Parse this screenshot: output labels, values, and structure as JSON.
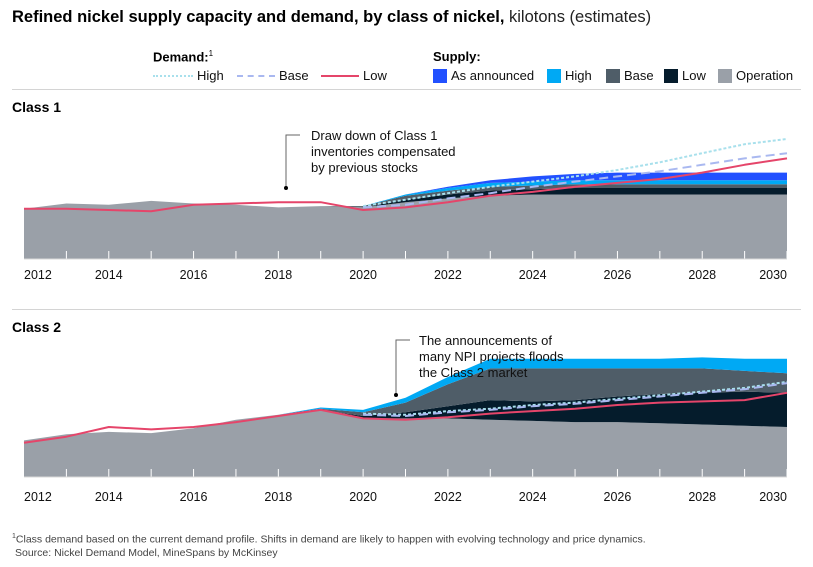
{
  "title": {
    "bold": "Refined nickel supply capacity and demand, by class of nickel,",
    "unit": "kilotons (estimates)"
  },
  "legend": {
    "demand_label": "Demand:",
    "demand_sup": "1",
    "supply_label": "Supply:",
    "demand_items": [
      {
        "label": "High",
        "color": "#a8e0ec",
        "style": "dotted"
      },
      {
        "label": "Base",
        "color": "#a9b8f0",
        "style": "dashed"
      },
      {
        "label": "Low",
        "color": "#e5456a",
        "style": "solid"
      }
    ],
    "supply_items": [
      {
        "label": "As announced",
        "color": "#2251ff"
      },
      {
        "label": "High",
        "color": "#00a9f4"
      },
      {
        "label": "Base",
        "color": "#4f5d68"
      },
      {
        "label": "Low",
        "color": "#051c2c"
      },
      {
        "label": "Operation",
        "color": "#9aa0a8"
      }
    ]
  },
  "annotations": {
    "class1": [
      "Draw down of Class 1",
      "inventories compensated",
      "by previous stocks"
    ],
    "class2": [
      "The announcements of",
      "many NPI projects floods",
      "the Class 2 market"
    ]
  },
  "footnote": {
    "sup": "1",
    "line1": "Class demand based on the current demand profile. Shifts in demand are likely to happen with evolving technology and price dynamics.",
    "line2": "Source: Nickel Demand Model, MineSpans by McKinsey"
  },
  "chart_data": [
    {
      "type": "area",
      "title": "Class 1",
      "xlabel": "",
      "ylabel": "kilotons (estimates, relative index; no y-axis shown)",
      "x": [
        2012,
        2013,
        2014,
        2015,
        2016,
        2017,
        2018,
        2019,
        2020,
        2021,
        2022,
        2023,
        2024,
        2025,
        2026,
        2027,
        2028,
        2029,
        2030
      ],
      "xticks": [
        2012,
        2014,
        2016,
        2018,
        2020,
        2022,
        2024,
        2026,
        2028,
        2030
      ],
      "ylim": [
        0,
        100
      ],
      "grid": false,
      "stacked_supply": [
        {
          "name": "Operation",
          "color": "#9aa0a8",
          "values": [
            39,
            43,
            42,
            45,
            43,
            42,
            40,
            41,
            40,
            44,
            47,
            49,
            50,
            50,
            50,
            50,
            50,
            50,
            50
          ]
        },
        {
          "name": "Low",
          "color": "#051c2c",
          "values": [
            0,
            0,
            0,
            0,
            0,
            0,
            0,
            0,
            0,
            2,
            3,
            4,
            4,
            5,
            5,
            5,
            5,
            5,
            5
          ]
        },
        {
          "name": "Base",
          "color": "#4f5d68",
          "values": [
            0,
            0,
            0,
            0,
            0,
            0,
            0,
            0,
            1,
            3,
            3,
            3,
            3,
            3,
            3,
            3,
            3,
            3,
            3
          ]
        },
        {
          "name": "High",
          "color": "#00a9f4",
          "values": [
            0,
            0,
            0,
            0,
            0,
            0,
            0,
            0,
            0,
            1,
            2,
            3,
            3,
            3,
            3,
            3,
            3,
            3,
            3
          ]
        },
        {
          "name": "As announced",
          "color": "#2251ff",
          "values": [
            0,
            0,
            0,
            0,
            0,
            0,
            0,
            0,
            0,
            0,
            1,
            2,
            4,
            5,
            6,
            6,
            6,
            6,
            6
          ]
        }
      ],
      "demand_lines": [
        {
          "name": "High",
          "color": "#a8e0ec",
          "style": "dotted",
          "values": [
            null,
            null,
            null,
            null,
            null,
            null,
            null,
            null,
            41,
            46,
            51,
            56,
            60,
            64,
            69,
            75,
            82,
            89,
            93
          ]
        },
        {
          "name": "Base",
          "color": "#a9b8f0",
          "style": "dashed",
          "values": [
            null,
            null,
            null,
            null,
            null,
            null,
            null,
            null,
            40,
            42,
            47,
            51,
            56,
            60,
            64,
            68,
            73,
            78,
            82
          ]
        },
        {
          "name": "Low",
          "color": "#e5456a",
          "style": "solid",
          "values": [
            39,
            39,
            38,
            37,
            42,
            43,
            44,
            44,
            38,
            40,
            44,
            49,
            52,
            56,
            59,
            62,
            67,
            73,
            78
          ]
        }
      ],
      "annotation": "Draw down of Class 1 inventories compensated by previous stocks",
      "annotation_x": 2018
    },
    {
      "type": "area",
      "title": "Class 2",
      "xlabel": "",
      "ylabel": "kilotons (estimates, relative index; no y-axis shown)",
      "x": [
        2012,
        2013,
        2014,
        2015,
        2016,
        2017,
        2018,
        2019,
        2020,
        2021,
        2022,
        2023,
        2024,
        2025,
        2026,
        2027,
        2028,
        2029,
        2030
      ],
      "xticks": [
        2012,
        2014,
        2016,
        2018,
        2020,
        2022,
        2024,
        2026,
        2028,
        2030
      ],
      "ylim": [
        0,
        100
      ],
      "grid": false,
      "stacked_supply": [
        {
          "name": "Operation",
          "color": "#9aa0a8",
          "values": [
            30,
            35,
            37,
            36,
            40,
            47,
            51,
            55,
            48,
            48,
            48,
            47,
            46,
            45,
            45,
            44,
            43,
            42,
            41
          ]
        },
        {
          "name": "Low",
          "color": "#051c2c",
          "values": [
            0,
            0,
            0,
            0,
            0,
            0,
            0,
            0,
            2,
            5,
            10,
            16,
            16,
            18,
            21,
            24,
            26,
            28,
            28
          ]
        },
        {
          "name": "Base",
          "color": "#4f5d68",
          "values": [
            0,
            0,
            0,
            0,
            0,
            0,
            0,
            1,
            3,
            8,
            18,
            26,
            27,
            26,
            23,
            21,
            20,
            17,
            16
          ]
        },
        {
          "name": "High",
          "color": "#00a9f4",
          "values": [
            0,
            0,
            0,
            0,
            0,
            0,
            0,
            1,
            2,
            4,
            6,
            8,
            8,
            8,
            8,
            8,
            9,
            10,
            12
          ]
        },
        {
          "name": "As announced",
          "color": "#2251ff",
          "values": [
            0,
            0,
            0,
            0,
            0,
            0,
            0,
            0,
            0,
            0,
            0,
            0,
            0,
            0,
            0,
            0,
            0,
            0,
            0
          ]
        }
      ],
      "demand_lines": [
        {
          "name": "High",
          "color": "#a8e0ec",
          "style": "dotted",
          "values": [
            null,
            null,
            null,
            null,
            null,
            null,
            null,
            null,
            52,
            51,
            54,
            56,
            59,
            61,
            64,
            67,
            70,
            73,
            78
          ]
        },
        {
          "name": "Base",
          "color": "#a9b8f0",
          "style": "dashed",
          "values": [
            null,
            null,
            null,
            null,
            null,
            null,
            null,
            null,
            51,
            50,
            53,
            55,
            58,
            60,
            63,
            66,
            69,
            72,
            77
          ]
        },
        {
          "name": "Low",
          "color": "#e5456a",
          "style": "solid",
          "values": [
            28,
            33,
            41,
            39,
            41,
            45,
            50,
            55,
            48,
            47,
            49,
            52,
            54,
            56,
            59,
            61,
            62,
            63,
            69
          ]
        }
      ],
      "annotation": "The announcements of many NPI projects floods the Class 2 market",
      "annotation_x": 2020.8
    }
  ]
}
